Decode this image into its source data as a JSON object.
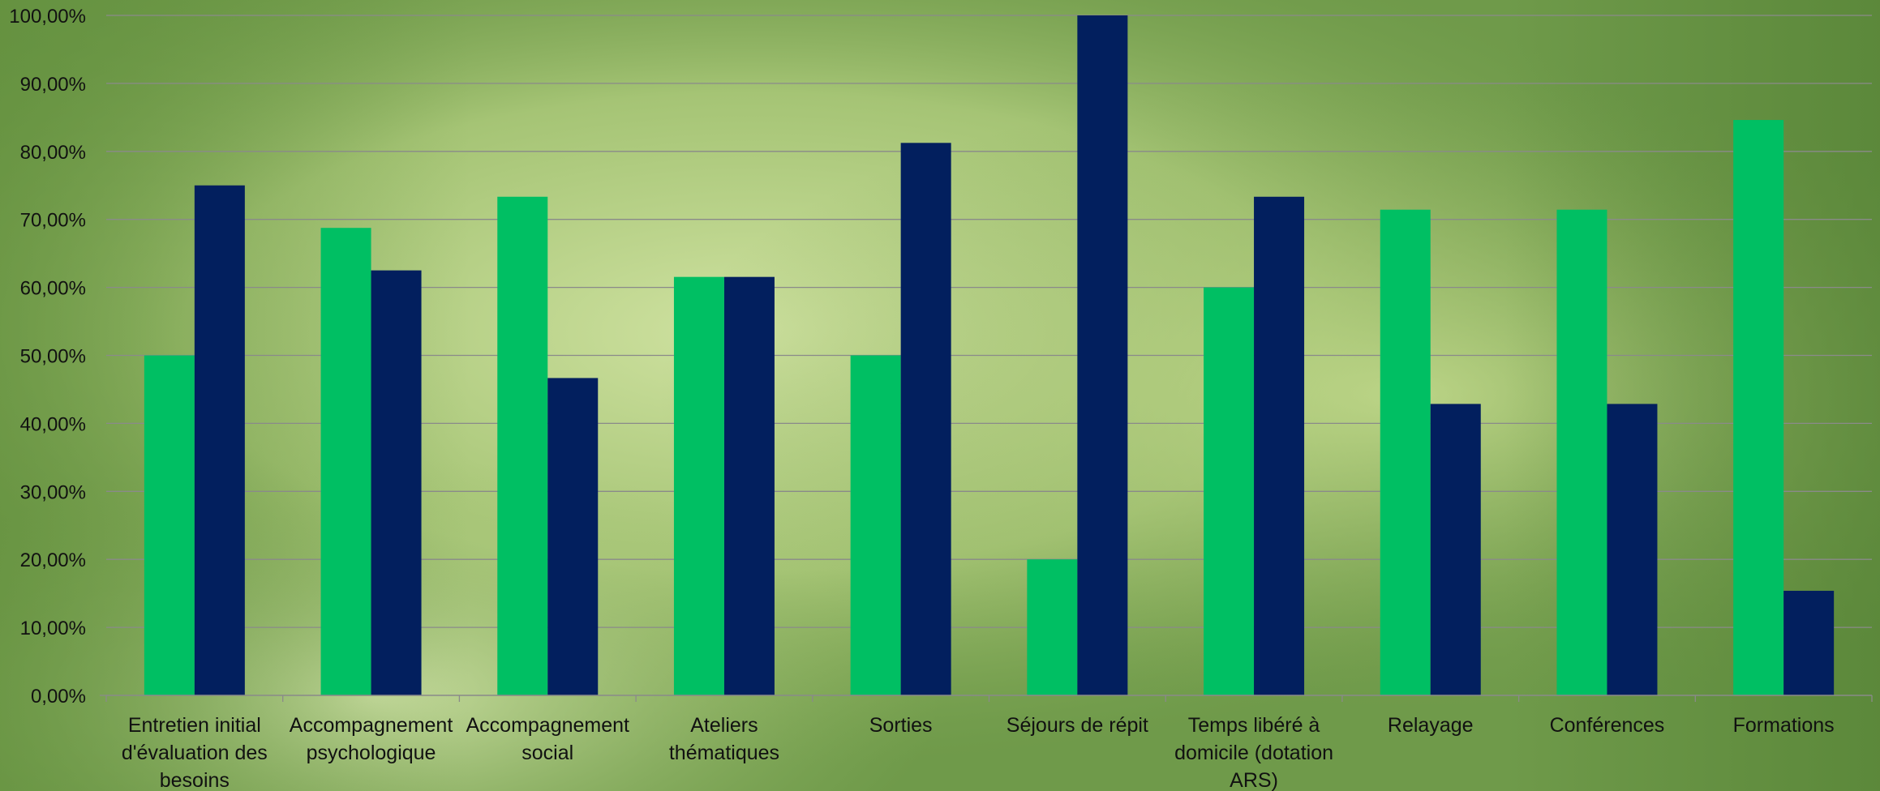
{
  "chart_data": {
    "type": "bar",
    "title": "",
    "xlabel": "",
    "ylabel": "",
    "ylim": [
      0,
      100
    ],
    "y_ticks": [
      "0,00%",
      "10,00%",
      "20,00%",
      "30,00%",
      "40,00%",
      "50,00%",
      "60,00%",
      "70,00%",
      "80,00%",
      "90,00%",
      "100,00%"
    ],
    "grid": true,
    "legend": "none",
    "categories": [
      [
        "Entretien initial",
        "d'évaluation des",
        "besoins"
      ],
      [
        "Accompagnement",
        "psychologique"
      ],
      [
        "Accompagnement",
        "social"
      ],
      [
        "Ateliers",
        "thématiques"
      ],
      [
        "Sorties"
      ],
      [
        "Séjours de répit"
      ],
      [
        "Temps libéré à",
        "domicile (dotation",
        "ARS)"
      ],
      [
        "Relayage"
      ],
      [
        "Conférences"
      ],
      [
        "Formations"
      ]
    ],
    "series": [
      {
        "color": "#00bf63",
        "values": [
          50.0,
          68.75,
          73.33,
          61.54,
          50.0,
          20.0,
          60.0,
          71.43,
          71.43,
          84.62
        ]
      },
      {
        "color": "#021f5e",
        "values": [
          75.0,
          62.5,
          46.67,
          61.54,
          81.25,
          100.0,
          73.33,
          42.86,
          42.86,
          15.38
        ]
      }
    ],
    "background_colors": {
      "base": "#6f9a4a",
      "light": "#c9df9a",
      "mid": "#a6c774",
      "dark": "#4f7a30"
    },
    "grid_color": "#8a8a8a",
    "text_color": "#111111"
  }
}
